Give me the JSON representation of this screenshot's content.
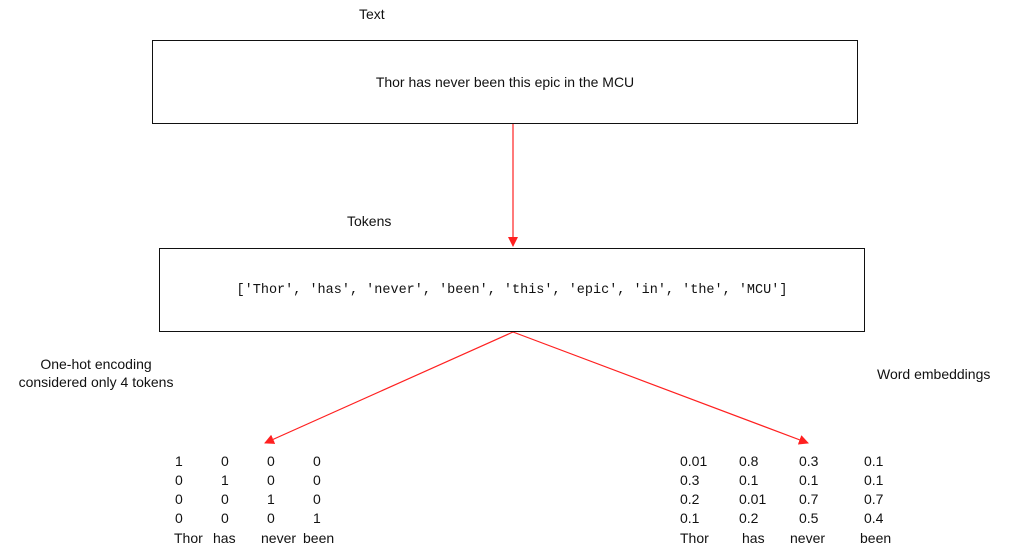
{
  "text_label": "Text",
  "text_box": "Thor has never been this epic in the MCU",
  "tokens_label": "Tokens",
  "tokens_box": "['Thor', 'has', 'never', 'been', 'this', 'epic', 'in', 'the', 'MCU']",
  "onehot": {
    "label_line1": "One-hot encoding",
    "label_line2": "considered only 4 tokens",
    "rows": [
      [
        "1",
        "0",
        "0",
        "0"
      ],
      [
        "0",
        "1",
        "0",
        "0"
      ],
      [
        "0",
        "0",
        "1",
        "0"
      ],
      [
        "0",
        "0",
        "0",
        "1"
      ]
    ],
    "words": [
      "Thor",
      "has",
      "never",
      "been"
    ]
  },
  "embeddings": {
    "label": "Word embeddings",
    "rows": [
      [
        "0.01",
        "0.8",
        "0.3",
        "0.1"
      ],
      [
        "0.3",
        "0.1",
        "0.1",
        "0.1"
      ],
      [
        "0.2",
        "0.01",
        "0.7",
        "0.7"
      ],
      [
        "0.1",
        "0.2",
        "0.5",
        "0.4"
      ]
    ],
    "words": [
      "Thor",
      "has",
      "never",
      "been"
    ]
  },
  "colors": {
    "arrow": "#ff2020",
    "border": "#111111"
  }
}
